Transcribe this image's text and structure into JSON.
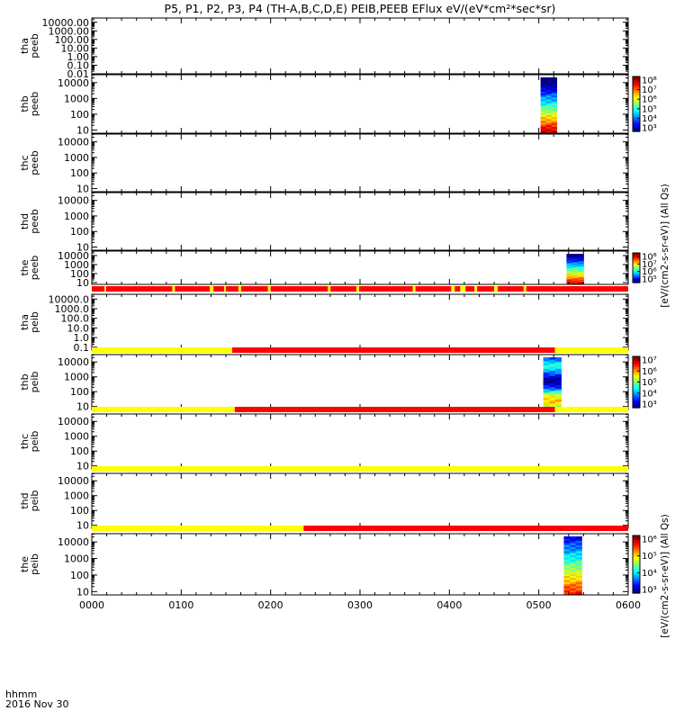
{
  "title": "P5, P1, P2, P3, P4 (TH-A,B,C,D,E) PEIB,PEEB EFlux eV/(eV*cm²*sec*sr)",
  "footer": {
    "time_label": "hhmm",
    "date_label": "2016 Nov 30"
  },
  "right_labels": {
    "upper": "[eV/(cm2-s-sr-eV)] (All Qs)",
    "lower": "[eV/(cm2-s-sr-eV)] (All Qs)"
  },
  "chart_data": {
    "type": "heatmap",
    "x_ticks": [
      "0000",
      "0100",
      "0200",
      "0300",
      "0400",
      "0500",
      "0600"
    ],
    "x_range_hours": [
      0,
      6
    ],
    "colors": {
      "flag_good": "#ffff00",
      "flag_bad": "#ff0000"
    },
    "panels": [
      {
        "probe": "tha",
        "product": "peeb",
        "yticks": [
          "10000.00",
          "1000.00",
          "100.00",
          "10.00",
          "1.00",
          "0.10",
          "0.01"
        ],
        "log_min": -2,
        "log_max": 4.5,
        "cbar_ticks": [],
        "data": []
      },
      {
        "probe": "thb",
        "product": "peeb",
        "yticks": [
          "10000",
          "1000",
          "100",
          "10"
        ],
        "log_min": 0.8,
        "log_max": 4.5,
        "cbar_ticks": [
          "10⁸",
          "10⁷",
          "10⁶",
          "10⁵",
          "10⁴",
          "10³"
        ],
        "data": [
          {
            "t0": 5.02,
            "t1": 5.2,
            "profile": "peeb_b"
          }
        ]
      },
      {
        "probe": "thc",
        "product": "peeb",
        "yticks": [
          "10000",
          "1000",
          "100",
          "10"
        ],
        "log_min": 0.8,
        "log_max": 4.5,
        "cbar_ticks": [],
        "data": []
      },
      {
        "probe": "thd",
        "product": "peeb",
        "yticks": [
          "10000",
          "1000",
          "100",
          "10"
        ],
        "log_min": 0.8,
        "log_max": 4.5,
        "cbar_ticks": [],
        "data": []
      },
      {
        "probe": "the",
        "product": "peeb",
        "yticks": [
          "10000",
          "1000",
          "100",
          "10"
        ],
        "log_min": 0.8,
        "log_max": 4.5,
        "cbar_ticks": [
          "10⁸",
          "10⁷",
          "10⁶",
          "10⁵"
        ],
        "data": [
          {
            "t0": 5.31,
            "t1": 5.5,
            "profile": "peeb_e"
          }
        ]
      },
      {
        "probe": "tha",
        "product": "peib",
        "yticks": [
          "10000.0",
          "1000.0",
          "100.0",
          "10.0",
          "1.0",
          "0.1"
        ],
        "log_min": -1.3,
        "log_max": 4.5,
        "cbar_ticks": [],
        "data": []
      },
      {
        "probe": "thb",
        "product": "peib",
        "yticks": [
          "10000",
          "1000",
          "100",
          "10"
        ],
        "log_min": 0.8,
        "log_max": 4.5,
        "cbar_ticks": [
          "10⁷",
          "10⁶",
          "10⁵",
          "10⁴",
          "10³"
        ],
        "data": [
          {
            "t0": 5.05,
            "t1": 5.25,
            "profile": "peib_b"
          }
        ]
      },
      {
        "probe": "thc",
        "product": "peib",
        "yticks": [
          "10000",
          "1000",
          "100",
          "10"
        ],
        "log_min": 0.8,
        "log_max": 4.5,
        "cbar_ticks": [],
        "data": []
      },
      {
        "probe": "thd",
        "product": "peib",
        "yticks": [
          "10000",
          "1000",
          "100",
          "10"
        ],
        "log_min": 0.8,
        "log_max": 4.5,
        "cbar_ticks": [],
        "data": []
      },
      {
        "probe": "the",
        "product": "peib",
        "yticks": [
          "10000",
          "1000",
          "100",
          "10"
        ],
        "log_min": 0.8,
        "log_max": 4.5,
        "cbar_ticks": [
          "10⁶",
          "10⁵",
          "10⁴",
          "10³"
        ],
        "data": [
          {
            "t0": 5.28,
            "t1": 5.48,
            "profile": "peib_e"
          }
        ]
      }
    ],
    "flag_bars": [
      {
        "after_panel": 4,
        "segments": [
          {
            "t0": 0,
            "t1": 6,
            "c": "flag_bad"
          },
          {
            "t0": 0.14,
            "t1": 0.16,
            "c": "flag_good"
          },
          {
            "t0": 0.9,
            "t1": 0.93,
            "c": "flag_good"
          },
          {
            "t0": 1.32,
            "t1": 1.36,
            "c": "flag_good"
          },
          {
            "t0": 1.48,
            "t1": 1.5,
            "c": "flag_good"
          },
          {
            "t0": 1.64,
            "t1": 1.67,
            "c": "flag_good"
          },
          {
            "t0": 1.97,
            "t1": 2.0,
            "c": "flag_good"
          },
          {
            "t0": 2.64,
            "t1": 2.67,
            "c": "flag_good"
          },
          {
            "t0": 2.96,
            "t1": 2.99,
            "c": "flag_good"
          },
          {
            "t0": 3.59,
            "t1": 3.62,
            "c": "flag_good"
          },
          {
            "t0": 4.02,
            "t1": 4.06,
            "c": "flag_good"
          },
          {
            "t0": 4.12,
            "t1": 4.18,
            "c": "flag_good"
          },
          {
            "t0": 4.28,
            "t1": 4.31,
            "c": "flag_good"
          },
          {
            "t0": 4.5,
            "t1": 4.54,
            "c": "flag_good"
          },
          {
            "t0": 4.83,
            "t1": 4.86,
            "c": "flag_good"
          }
        ]
      },
      {
        "after_panel": 5,
        "segments": [
          {
            "t0": 0,
            "t1": 1.57,
            "c": "flag_good"
          },
          {
            "t0": 1.57,
            "t1": 5.18,
            "c": "flag_bad"
          },
          {
            "t0": 5.18,
            "t1": 6,
            "c": "flag_good"
          }
        ]
      },
      {
        "after_panel": 6,
        "segments": [
          {
            "t0": 0,
            "t1": 1.6,
            "c": "flag_good"
          },
          {
            "t0": 1.6,
            "t1": 5.18,
            "c": "flag_bad"
          },
          {
            "t0": 5.18,
            "t1": 6,
            "c": "flag_good"
          }
        ]
      },
      {
        "after_panel": 7,
        "segments": [
          {
            "t0": 0,
            "t1": 6,
            "c": "flag_good"
          }
        ]
      },
      {
        "after_panel": 8,
        "segments": [
          {
            "t0": 0,
            "t1": 2.37,
            "c": "flag_good"
          },
          {
            "t0": 2.37,
            "t1": 6,
            "c": "flag_bad"
          }
        ]
      }
    ]
  }
}
